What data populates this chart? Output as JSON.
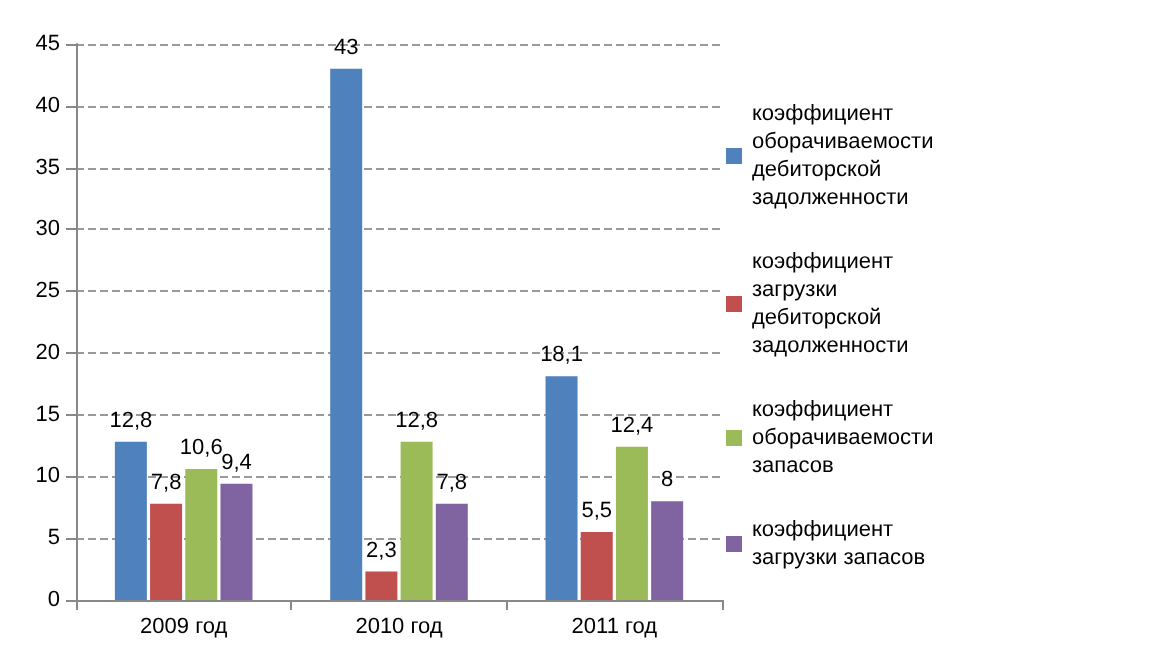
{
  "chart_data": {
    "type": "bar",
    "categories": [
      "2009 год",
      "2010 год",
      "2011 год"
    ],
    "series": [
      {
        "name": "коэффициент оборачиваемости дебиторской задолженности",
        "color": "#4f81bd",
        "values": [
          12.8,
          43,
          18.1
        ],
        "value_labels": [
          "12,8",
          "43",
          "18,1"
        ]
      },
      {
        "name": "коэффициент загрузки дебиторской задолженности",
        "color": "#c0504d",
        "values": [
          7.8,
          2.3,
          5.5
        ],
        "value_labels": [
          "7,8",
          "2,3",
          "5,5"
        ]
      },
      {
        "name": "коэффициент оборачиваемости запасов",
        "color": "#9bbb59",
        "values": [
          10.6,
          12.8,
          12.4
        ],
        "value_labels": [
          "10,6",
          "12,8",
          "12,4"
        ]
      },
      {
        "name": "коэффициент загрузки запасов",
        "color": "#8064a2",
        "values": [
          9.4,
          7.8,
          8
        ],
        "value_labels": [
          "9,4",
          "7,8",
          "8"
        ]
      }
    ],
    "ylim": [
      0,
      45
    ],
    "yticks": [
      0,
      5,
      10,
      15,
      20,
      25,
      30,
      35,
      40,
      45
    ],
    "grid": "y",
    "legend": "right"
  }
}
